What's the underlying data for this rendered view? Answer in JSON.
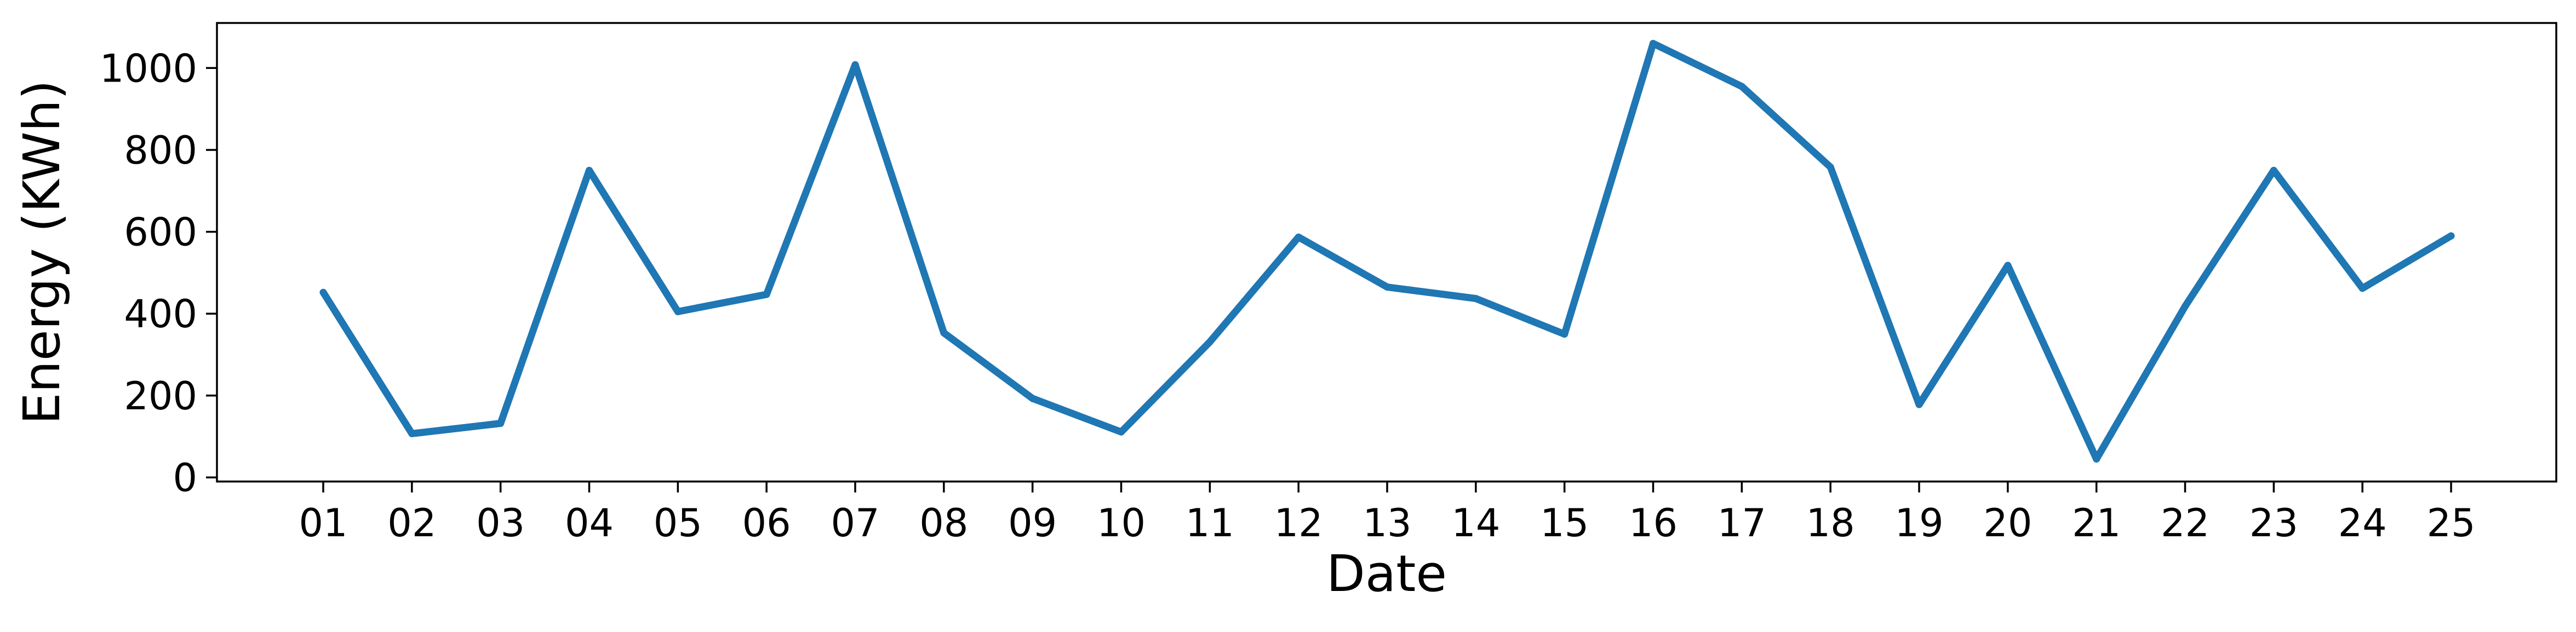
{
  "chart_data": {
    "type": "line",
    "title": "",
    "xlabel": "Date",
    "ylabel": "Energy (KWh)",
    "categories": [
      "01",
      "02",
      "03",
      "04",
      "05",
      "06",
      "07",
      "08",
      "09",
      "10",
      "11",
      "12",
      "13",
      "14",
      "15",
      "16",
      "17",
      "18",
      "19",
      "20",
      "21",
      "22",
      "23",
      "24",
      "25"
    ],
    "series": [
      {
        "values": [
          452,
          107,
          132,
          750,
          405,
          447,
          1008,
          353,
          193,
          111,
          331,
          587,
          465,
          437,
          350,
          1060,
          955,
          758,
          178,
          518,
          45,
          418,
          750,
          462,
          590
        ]
      }
    ],
    "ylim": [
      -10,
      1110
    ],
    "yticks": [
      0,
      200,
      400,
      600,
      800,
      1000
    ],
    "grid": false,
    "legend": "none",
    "colors": {
      "line": "#1f77b4"
    }
  }
}
